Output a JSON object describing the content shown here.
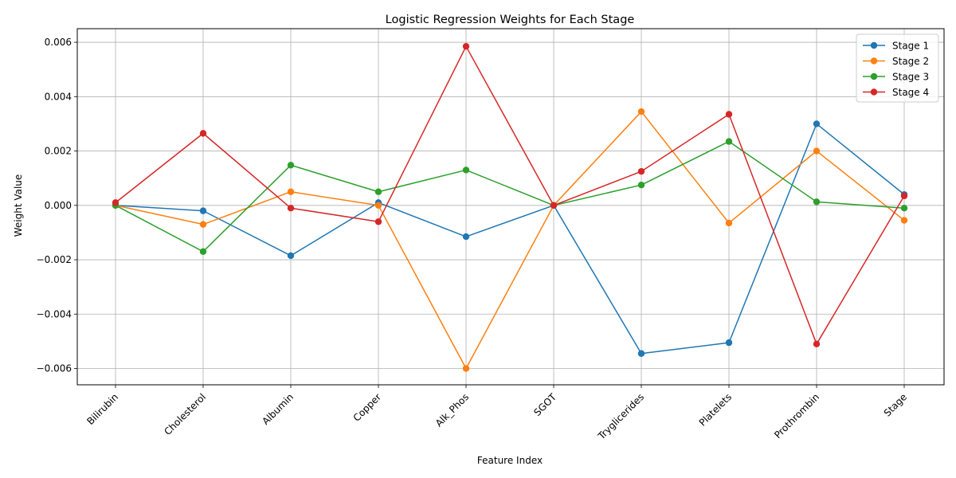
{
  "chart_data": {
    "type": "line",
    "title": "Logistic Regression Weights for Each Stage",
    "xlabel": "Feature Index",
    "ylabel": "Weight Value",
    "categories": [
      "Bilirubin",
      "Cholesterol",
      "Albumin",
      "Copper",
      "Alk_Phos",
      "SGOT",
      "Tryglicerides",
      "Platelets",
      "Prothrombin",
      "Stage"
    ],
    "ylim": [
      -0.0066,
      0.0065
    ],
    "yticks": [
      -0.006,
      -0.004,
      -0.002,
      0.0,
      0.002,
      0.004,
      0.006
    ],
    "ytick_labels": [
      "−0.006",
      "−0.004",
      "−0.002",
      "0.000",
      "0.002",
      "0.004",
      "0.006"
    ],
    "grid": true,
    "legend_position": "top-right",
    "series": [
      {
        "name": "Stage 1",
        "color": "#1f77b4",
        "values": [
          0.0,
          -0.0002,
          -0.00185,
          0.0001,
          -0.00115,
          0.0,
          -0.00545,
          -0.00505,
          0.003,
          0.0004
        ]
      },
      {
        "name": "Stage 2",
        "color": "#ff7f0e",
        "values": [
          0.0,
          -0.0007,
          0.0005,
          0.0,
          -0.006,
          0.0,
          0.00345,
          -0.00065,
          0.002,
          -0.00055
        ]
      },
      {
        "name": "Stage 3",
        "color": "#2ca02c",
        "values": [
          0.0,
          -0.0017,
          0.00148,
          0.0005,
          0.0013,
          0.0,
          0.00075,
          0.00235,
          0.00013,
          -0.0001
        ]
      },
      {
        "name": "Stage 4",
        "color": "#d62728",
        "values": [
          0.0001,
          0.00265,
          -0.0001,
          -0.0006,
          0.00585,
          0.0,
          0.00125,
          0.00335,
          -0.0051,
          0.00035
        ]
      }
    ]
  }
}
